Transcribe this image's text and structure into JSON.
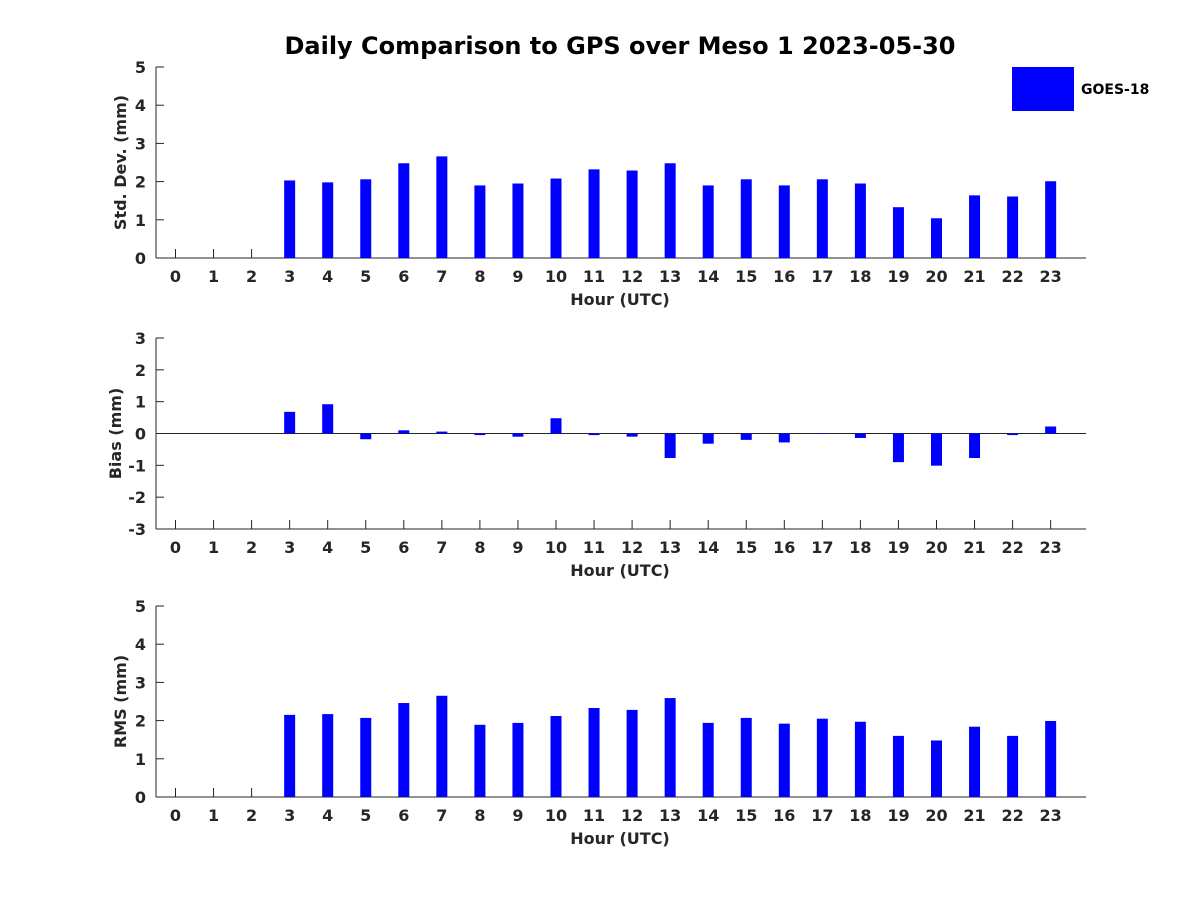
{
  "title": "Daily Comparison to GPS over Meso 1 2023-05-30",
  "legend": {
    "label": "GOES-18",
    "placement": "top-right"
  },
  "colors": {
    "bar": "#0000ff",
    "axis": "#262626"
  },
  "chart_data": [
    {
      "type": "bar",
      "ylabel": "Std. Dev. (mm)",
      "xlabel": "Hour (UTC)",
      "ylim": [
        0,
        5
      ],
      "yticks": [
        0,
        1,
        2,
        3,
        4,
        5
      ],
      "categories": [
        0,
        1,
        2,
        3,
        4,
        5,
        6,
        7,
        8,
        9,
        10,
        11,
        12,
        13,
        14,
        15,
        16,
        17,
        18,
        19,
        20,
        21,
        22,
        23
      ],
      "series": [
        {
          "name": "GOES-18",
          "values": [
            null,
            null,
            null,
            2.03,
            1.98,
            2.06,
            2.48,
            2.66,
            1.9,
            1.95,
            2.08,
            2.32,
            2.29,
            2.48,
            1.9,
            2.06,
            1.9,
            2.06,
            1.95,
            1.33,
            1.04,
            1.64,
            1.61,
            2.01
          ]
        }
      ],
      "grid": false
    },
    {
      "type": "bar",
      "ylabel": "Bias (mm)",
      "xlabel": "Hour (UTC)",
      "ylim": [
        -3,
        3
      ],
      "yticks": [
        -3,
        -2,
        -1,
        0,
        1,
        2,
        3
      ],
      "categories": [
        0,
        1,
        2,
        3,
        4,
        5,
        6,
        7,
        8,
        9,
        10,
        11,
        12,
        13,
        14,
        15,
        16,
        17,
        18,
        19,
        20,
        21,
        22,
        23
      ],
      "series": [
        {
          "name": "GOES-18",
          "values": [
            null,
            null,
            null,
            0.68,
            0.92,
            -0.18,
            0.1,
            0.06,
            -0.05,
            -0.1,
            0.48,
            -0.05,
            -0.1,
            -0.77,
            -0.32,
            -0.2,
            -0.28,
            -0.01,
            -0.14,
            -0.9,
            -1.01,
            -0.77,
            -0.05,
            0.22
          ]
        }
      ],
      "grid": false
    },
    {
      "type": "bar",
      "ylabel": "RMS (mm)",
      "xlabel": "Hour (UTC)",
      "ylim": [
        0,
        5
      ],
      "yticks": [
        0,
        1,
        2,
        3,
        4,
        5
      ],
      "categories": [
        0,
        1,
        2,
        3,
        4,
        5,
        6,
        7,
        8,
        9,
        10,
        11,
        12,
        13,
        14,
        15,
        16,
        17,
        18,
        19,
        20,
        21,
        22,
        23
      ],
      "series": [
        {
          "name": "GOES-18",
          "values": [
            null,
            null,
            null,
            2.15,
            2.17,
            2.07,
            2.46,
            2.65,
            1.89,
            1.94,
            2.12,
            2.33,
            2.28,
            2.59,
            1.94,
            2.07,
            1.92,
            2.05,
            1.97,
            1.6,
            1.48,
            1.84,
            1.6,
            1.99
          ]
        }
      ],
      "grid": false
    }
  ]
}
